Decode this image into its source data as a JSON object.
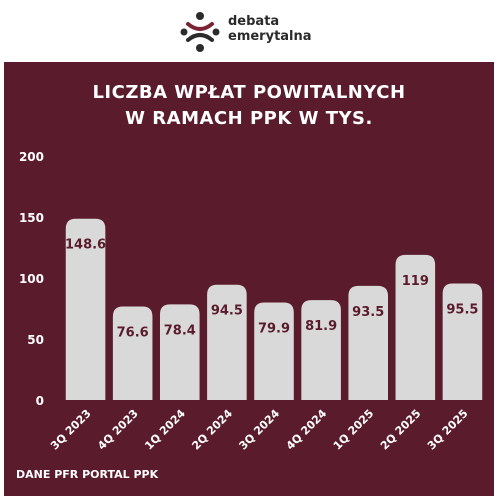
{
  "brand": {
    "line1": "debata",
    "line2": "emerytalna"
  },
  "colors": {
    "background": "#5a1c2c",
    "bar": "#d9d9d9",
    "label": "#5a1c2c",
    "text": "#ffffff"
  },
  "source_note": "DANE PFR PORTAL PPK",
  "chart_data": {
    "type": "bar",
    "title_lines": [
      "LICZBA WPŁAT POWITALNYCH",
      "W RAMACH PPK W TYS."
    ],
    "categories": [
      "3Q 2023",
      "4Q 2023",
      "1Q 2024",
      "2Q 2024",
      "3Q 2024",
      "4Q 2024",
      "1Q 2025",
      "2Q 2025",
      "3Q 2025"
    ],
    "values": [
      148.6,
      76.6,
      78.4,
      94.5,
      79.9,
      81.9,
      93.5,
      119,
      95.5
    ],
    "data_labels": [
      "148.6",
      "76.6",
      "78.4",
      "94.5",
      "79.9",
      "81.9",
      "93.5",
      "119",
      "95.5"
    ],
    "yticks": [
      0,
      50,
      100,
      150,
      200
    ],
    "ylim": [
      0,
      200
    ],
    "grid": false,
    "legend": "none"
  }
}
